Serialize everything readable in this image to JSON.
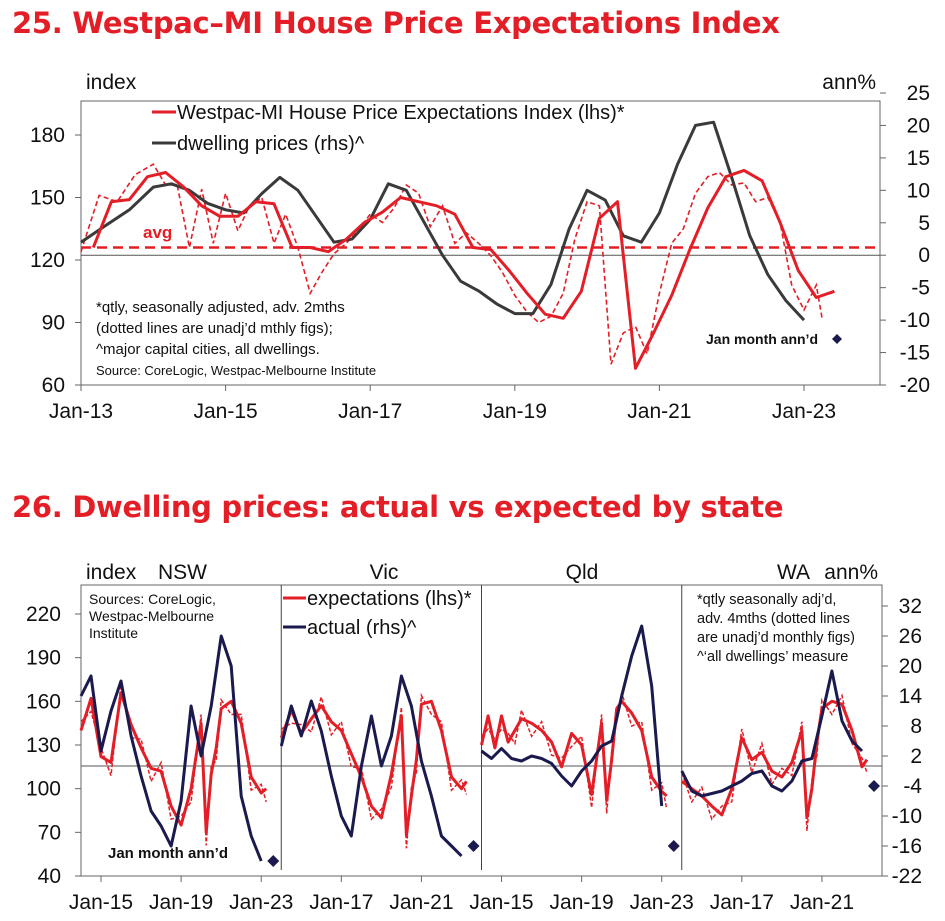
{
  "colors": {
    "red": "#e31e26",
    "dark_grey": "#3a3a3a",
    "navy": "#1b1a4e",
    "axis": "#555555"
  },
  "chart_data": [
    {
      "id": "chart25",
      "type": "line",
      "title": "25. Westpac–MI House Price Expectations Index",
      "ylabel_left": "index",
      "ylabel_right": "ann%",
      "ylim_left": [
        60,
        200
      ],
      "yticks_left": [
        60,
        90,
        120,
        150,
        180
      ],
      "ylim_right": [
        -20,
        25
      ],
      "yticks_right": [
        -20,
        -15,
        -10,
        -5,
        0,
        5,
        10,
        15,
        20,
        25
      ],
      "xlim": [
        2013.0,
        2024.5
      ],
      "xticks": [
        {
          "x": 2013,
          "label": "Jan-13"
        },
        {
          "x": 2015,
          "label": "Jan-15"
        },
        {
          "x": 2017,
          "label": "Jan-17"
        },
        {
          "x": 2019,
          "label": "Jan-19"
        },
        {
          "x": 2021,
          "label": "Jan-21"
        },
        {
          "x": 2023,
          "label": "Jan-23"
        }
      ],
      "legend": [
        {
          "label": "Westpac-MI House Price Expectations Index (lhs)*",
          "color": "#e31e26"
        },
        {
          "label": "dwelling prices (rhs)^",
          "color": "#3a3a3a"
        }
      ],
      "avg": {
        "label": "avg",
        "value": 126
      },
      "notes": [
        "*qtly, seasonally adjusted, adv. 2mths",
        "(dotted lines are unadj’d mthly figs);",
        "^major capital cities, all dwellings."
      ],
      "source": "Source: CoreLogic, Westpac-Melbourne Institute",
      "annotation": "Jan month ann’d",
      "jan_point": {
        "x": 2023.5,
        "y_right": -13
      },
      "series": [
        {
          "name": "expectations_qtly",
          "axis": "left",
          "x": [
            2013.17,
            2013.42,
            2013.67,
            2013.92,
            2014.17,
            2014.42,
            2014.67,
            2014.92,
            2015.17,
            2015.42,
            2015.67,
            2015.92,
            2016.17,
            2016.42,
            2016.67,
            2016.92,
            2017.17,
            2017.42,
            2017.67,
            2017.92,
            2018.17,
            2018.42,
            2018.67,
            2018.92,
            2019.17,
            2019.42,
            2019.67,
            2019.92,
            2020.17,
            2020.42,
            2020.67,
            2020.92,
            2021.17,
            2021.42,
            2021.67,
            2021.92,
            2022.17,
            2022.42,
            2022.67,
            2022.92,
            2023.17,
            2023.42
          ],
          "y": [
            126,
            148,
            149,
            160,
            162,
            155,
            146,
            141,
            141,
            148,
            147,
            126,
            126,
            124,
            130,
            138,
            143,
            150,
            148,
            146,
            142,
            126,
            125,
            115,
            104,
            94,
            92,
            105,
            140,
            148,
            68,
            85,
            103,
            125,
            145,
            160,
            163,
            158,
            138,
            115,
            102,
            105
          ]
        },
        {
          "name": "expectations_monthly",
          "axis": "left",
          "x": [
            2013.0,
            2013.25,
            2013.5,
            2013.75,
            2014.0,
            2014.17,
            2014.33,
            2014.5,
            2014.67,
            2014.83,
            2015.0,
            2015.17,
            2015.33,
            2015.5,
            2015.67,
            2015.83,
            2016.0,
            2016.17,
            2016.33,
            2016.5,
            2016.67,
            2016.83,
            2017.0,
            2017.17,
            2017.33,
            2017.5,
            2017.67,
            2017.83,
            2018.0,
            2018.17,
            2018.33,
            2018.5,
            2018.67,
            2018.83,
            2019.0,
            2019.17,
            2019.33,
            2019.5,
            2019.67,
            2019.83,
            2020.0,
            2020.17,
            2020.33,
            2020.5,
            2020.67,
            2020.83,
            2021.0,
            2021.17,
            2021.33,
            2021.5,
            2021.67,
            2021.83,
            2022.0,
            2022.17,
            2022.33,
            2022.5,
            2022.67,
            2022.83,
            2023.0,
            2023.17,
            2023.25
          ],
          "y": [
            124,
            151,
            148,
            161,
            166,
            156,
            156,
            126,
            154,
            128,
            152,
            134,
            146,
            150,
            128,
            142,
            126,
            104,
            114,
            123,
            128,
            134,
            142,
            138,
            145,
            156,
            152,
            136,
            146,
            128,
            133,
            128,
            122,
            114,
            103,
            95,
            90,
            93,
            104,
            130,
            148,
            146,
            70,
            85,
            88,
            75,
            104,
            128,
            135,
            152,
            160,
            162,
            156,
            157,
            148,
            150,
            138,
            108,
            96,
            108,
            92
          ]
        },
        {
          "name": "dwelling_prices",
          "axis": "right",
          "x": [
            2013.0,
            2013.33,
            2013.67,
            2014.0,
            2014.25,
            2014.5,
            2014.75,
            2015.0,
            2015.25,
            2015.5,
            2015.75,
            2016.0,
            2016.25,
            2016.5,
            2016.75,
            2017.0,
            2017.25,
            2017.5,
            2017.75,
            2018.0,
            2018.25,
            2018.5,
            2018.75,
            2019.0,
            2019.25,
            2019.5,
            2019.75,
            2020.0,
            2020.25,
            2020.5,
            2020.75,
            2021.0,
            2021.25,
            2021.5,
            2021.75,
            2022.0,
            2022.25,
            2022.5,
            2022.75,
            2023.0
          ],
          "y": [
            2,
            4.5,
            7,
            10.5,
            11,
            10,
            8,
            7,
            6.5,
            9.5,
            12,
            10,
            6,
            2,
            2.5,
            5.5,
            11,
            10,
            5,
            0,
            -4,
            -5.5,
            -7.5,
            -9,
            -9,
            -4.5,
            4,
            10,
            8.5,
            3,
            2,
            6.5,
            14,
            20,
            20.5,
            12,
            3,
            -3,
            -7,
            -10
          ]
        }
      ]
    },
    {
      "id": "chart26",
      "type": "line",
      "title": "26. Dwelling prices: actual vs expected by state",
      "ylabel_left": "index",
      "ylabel_right": "ann%",
      "ylim_left": [
        40,
        235
      ],
      "yticks_left": [
        40,
        70,
        100,
        130,
        160,
        190,
        220
      ],
      "ylim_right": [
        -22,
        35
      ],
      "yticks_right": [
        -22,
        -16,
        -10,
        -4,
        2,
        8,
        14,
        20,
        26,
        32
      ],
      "legend": [
        {
          "label": "expectations (lhs)*",
          "color": "#e31e26"
        },
        {
          "label": "actual (rhs)^",
          "color": "#1b1a4e"
        }
      ],
      "sources": [
        "Sources: CoreLogic,",
        "Westpac-Melbourne",
        "Institute"
      ],
      "notes": [
        "*qtly seasonally adj’d,",
        "adv. 4mths (dotted lines",
        "are unadj’d monthly figs)",
        "^‘all dwellings’ measure"
      ],
      "annotation": "Jan month ann’d",
      "panels": [
        {
          "name": "NSW",
          "xticks": [
            {
              "x": 2015,
              "label": "Jan-15"
            },
            {
              "x": 2019,
              "label": "Jan-19"
            },
            {
              "x": 2023,
              "label": "Jan-23"
            }
          ],
          "expect_x": [
            2014.0,
            2014.5,
            2015.0,
            2015.5,
            2016.0,
            2016.5,
            2017.0,
            2017.5,
            2018.0,
            2018.5,
            2019.0,
            2019.5,
            2020.0,
            2020.25,
            2020.5,
            2020.75,
            2021.0,
            2021.5,
            2022.0,
            2022.5,
            2023.0,
            2023.25
          ],
          "expect_y": [
            140,
            162,
            122,
            118,
            166,
            144,
            128,
            114,
            112,
            88,
            75,
            100,
            145,
            70,
            110,
            128,
            155,
            160,
            145,
            108,
            97,
            100
          ],
          "actual_x": [
            2014.0,
            2014.5,
            2015.0,
            2015.5,
            2016.0,
            2016.5,
            2017.0,
            2017.5,
            2018.0,
            2018.5,
            2019.0,
            2019.5,
            2020.0,
            2020.5,
            2021.0,
            2021.5,
            2022.0,
            2022.5,
            2023.0
          ],
          "actual_y": [
            14,
            18,
            3,
            11,
            17,
            6,
            -2,
            -9,
            -12,
            -16,
            -7,
            12,
            2,
            12,
            26,
            20,
            -6,
            -14,
            -19
          ],
          "jan_point": -19
        },
        {
          "name": "Vic",
          "xticks": [
            {
              "x": 2017,
              "label": "Jan-17"
            },
            {
              "x": 2021,
              "label": "Jan-21"
            }
          ],
          "expect_x": [
            2014.0,
            2014.5,
            2015.0,
            2015.5,
            2016.0,
            2016.5,
            2017.0,
            2017.5,
            2018.0,
            2018.5,
            2019.0,
            2019.5,
            2020.0,
            2020.25,
            2020.5,
            2020.75,
            2021.0,
            2021.5,
            2022.0,
            2022.5,
            2023.0,
            2023.25
          ],
          "expect_y": [
            135,
            154,
            138,
            148,
            157,
            146,
            140,
            124,
            108,
            88,
            80,
            110,
            150,
            68,
            95,
            120,
            158,
            160,
            140,
            108,
            100,
            105
          ],
          "actual_x": [
            2014.0,
            2014.5,
            2015.0,
            2015.5,
            2016.0,
            2016.5,
            2017.0,
            2017.5,
            2018.0,
            2018.5,
            2019.0,
            2019.5,
            2020.0,
            2020.5,
            2021.0,
            2021.5,
            2022.0,
            2022.5,
            2023.0
          ],
          "actual_y": [
            4,
            12,
            6,
            13,
            7,
            -2,
            -10,
            -14,
            0,
            10,
            0,
            6,
            18,
            12,
            1,
            -6,
            -14,
            -16,
            -18
          ],
          "jan_point": -16
        },
        {
          "name": "Qld",
          "xticks": [
            {
              "x": 2015,
              "label": "Jan-15"
            },
            {
              "x": 2019,
              "label": "Jan-19"
            },
            {
              "x": 2023,
              "label": "Jan-23"
            }
          ],
          "expect_x": [
            2014.0,
            2014.33,
            2014.67,
            2015.0,
            2015.33,
            2015.67,
            2016.0,
            2016.5,
            2017.0,
            2017.5,
            2018.0,
            2018.5,
            2019.0,
            2019.5,
            2020.0,
            2020.25,
            2020.5,
            2020.75,
            2021.0,
            2021.5,
            2022.0,
            2022.5,
            2023.0,
            2023.25
          ],
          "expect_y": [
            130,
            150,
            128,
            150,
            132,
            140,
            148,
            145,
            140,
            132,
            115,
            138,
            130,
            96,
            145,
            92,
            120,
            155,
            160,
            152,
            140,
            108,
            98,
            95
          ],
          "actual_x": [
            2014.0,
            2014.5,
            2015.0,
            2015.5,
            2016.0,
            2016.5,
            2017.0,
            2017.5,
            2018.0,
            2018.5,
            2019.0,
            2019.5,
            2020.0,
            2020.5,
            2021.0,
            2021.5,
            2022.0,
            2022.5,
            2023.0
          ],
          "actual_y": [
            3,
            1.5,
            3.5,
            1.5,
            1,
            2,
            1.5,
            0.5,
            -2,
            -4,
            -1,
            1,
            4,
            5,
            14,
            22,
            28,
            16,
            -8
          ],
          "jan_point": -16
        },
        {
          "name": "WA",
          "xticks": [
            {
              "x": 2017,
              "label": "Jan-17"
            },
            {
              "x": 2021,
              "label": "Jan-21"
            }
          ],
          "expect_x": [
            2014.0,
            2014.5,
            2015.0,
            2015.5,
            2016.0,
            2016.5,
            2017.0,
            2017.5,
            2018.0,
            2018.5,
            2019.0,
            2019.5,
            2020.0,
            2020.25,
            2020.5,
            2020.75,
            2021.0,
            2021.5,
            2022.0,
            2022.5,
            2023.0,
            2023.25
          ],
          "expect_y": [
            105,
            100,
            95,
            88,
            82,
            100,
            135,
            120,
            125,
            112,
            108,
            118,
            140,
            80,
            100,
            132,
            155,
            160,
            158,
            140,
            115,
            120
          ],
          "actual_x": [
            2014.0,
            2014.5,
            2015.0,
            2015.5,
            2016.0,
            2016.5,
            2017.0,
            2017.5,
            2018.0,
            2018.5,
            2019.0,
            2019.5,
            2020.0,
            2020.5,
            2021.0,
            2021.5,
            2022.0,
            2022.5,
            2023.0
          ],
          "actual_y": [
            -1,
            -5,
            -6,
            -5.5,
            -5,
            -4,
            -3,
            -1.5,
            -1,
            -4,
            -5,
            -3,
            1,
            1.5,
            10,
            19,
            9,
            5,
            3
          ],
          "jan_point": -4
        }
      ]
    }
  ]
}
